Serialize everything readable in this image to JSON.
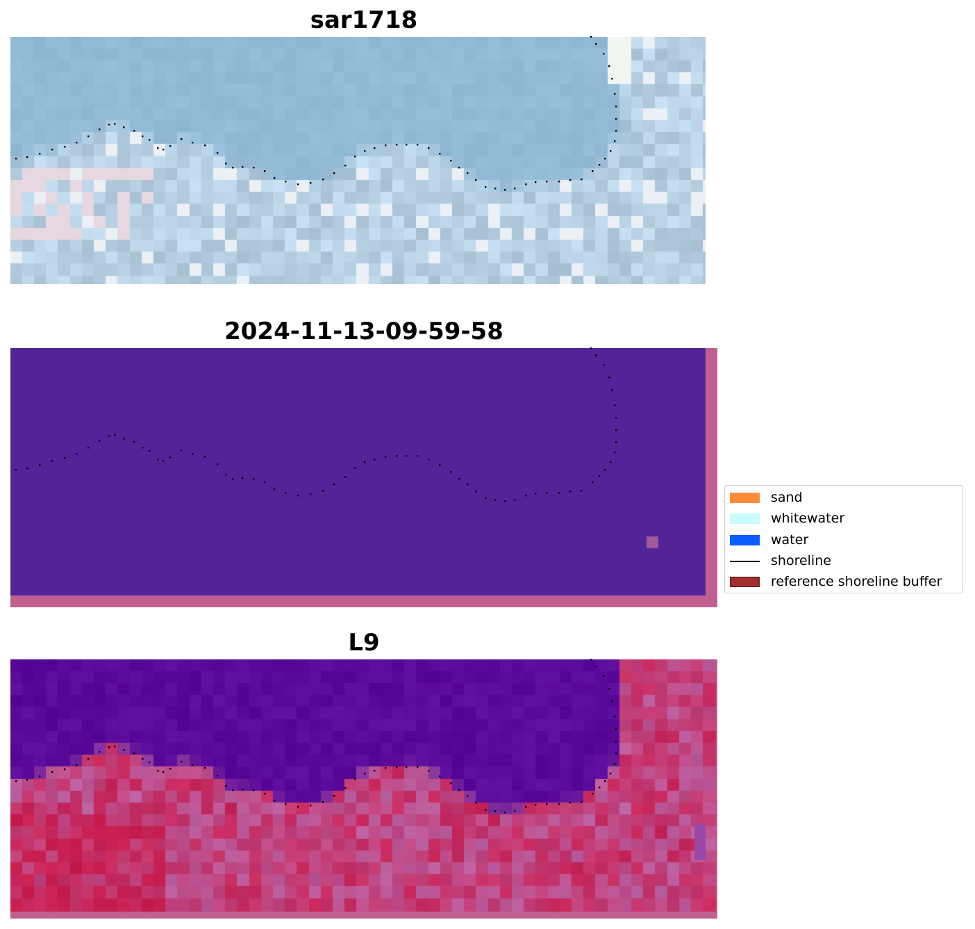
{
  "chart_data": [
    {
      "type": "image",
      "title": "sar1718",
      "content": "true-color satellite image (RGB)",
      "shoreline_overlay": "dotted black shoreline"
    },
    {
      "type": "image",
      "title": "2024-11-13-09-59-58",
      "content": "classified image",
      "classes_shown": [
        "background (purple)"
      ],
      "shoreline_overlay": "dotted black shoreline"
    },
    {
      "type": "image",
      "title": "L9",
      "content": "index image (purple = water, red = land)",
      "shoreline_overlay": "dotted black shoreline"
    }
  ],
  "legend": {
    "items": [
      {
        "label": "sand",
        "kind": "patch",
        "color": "#ff8c3a"
      },
      {
        "label": "whitewater",
        "kind": "patch",
        "color": "#c8fcff"
      },
      {
        "label": "water",
        "kind": "patch",
        "color": "#0a5cff"
      },
      {
        "label": "shoreline",
        "kind": "line",
        "color": "#000000"
      },
      {
        "label": "reference shoreline buffer",
        "kind": "patch",
        "color": "#a0302e",
        "edge": "#7a1f1d"
      }
    ]
  },
  "colors": {
    "class_background": "#532498",
    "buffer_overlay": "#c06090",
    "water_index": "#5a0a9a",
    "land_index": "#c8103c"
  }
}
